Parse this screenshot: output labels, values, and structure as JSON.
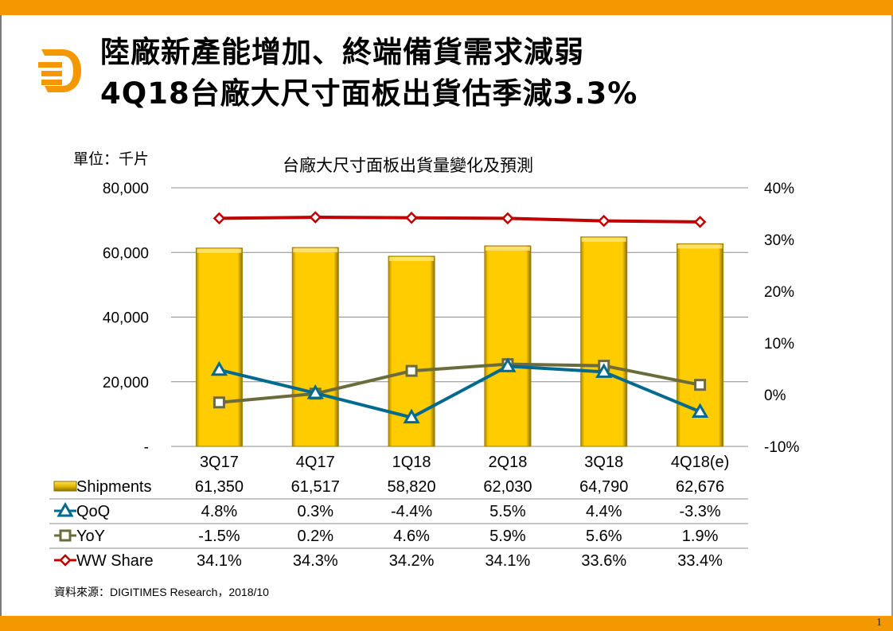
{
  "slide": {
    "title_line1": "陸廠新產能增加、終端備貨需求減弱",
    "title_line2": "4Q18台廠大尺寸面板出貨估季減3.3%",
    "unit_label": "單位：千片",
    "source": "資料來源：DIGITIMES Research，2018/10",
    "page_number": "1",
    "logo": "digitimes-d-logo",
    "colors": {
      "brand_orange": "#f39800",
      "bar_fill": "#ffcc00",
      "qoq": "#00698f",
      "yoy": "#6b6b3b",
      "ww_share": "#c00000"
    }
  },
  "chart_data": {
    "type": "bar",
    "title": "台廠大尺寸面板出貨量變化及預測",
    "xlabel": "",
    "ylabel": "單位：千片",
    "categories": [
      "3Q17",
      "4Q17",
      "1Q18",
      "2Q18",
      "3Q18",
      "4Q18(e)"
    ],
    "ylim": [
      0,
      80000
    ],
    "y2lim": [
      -10,
      40
    ],
    "y_ticks": [
      "-",
      "20,000",
      "40,000",
      "60,000",
      "80,000"
    ],
    "y2_ticks": [
      "-10%",
      "0%",
      "10%",
      "20%",
      "30%",
      "40%"
    ],
    "grid": true,
    "legend": "data-table-below",
    "series": [
      {
        "name": "Shipments",
        "type": "bar",
        "axis": "left",
        "marker": "bar",
        "values": [
          61350,
          61517,
          58820,
          62030,
          64790,
          62676
        ],
        "labels": [
          "61,350",
          "61,517",
          "58,820",
          "62,030",
          "64,790",
          "62,676"
        ]
      },
      {
        "name": "QoQ",
        "type": "line",
        "axis": "right",
        "marker": "triangle",
        "values": [
          4.8,
          0.3,
          -4.4,
          5.5,
          4.4,
          -3.3
        ],
        "labels": [
          "4.8%",
          "0.3%",
          "-4.4%",
          "5.5%",
          "4.4%",
          "-3.3%"
        ]
      },
      {
        "name": "YoY",
        "type": "line",
        "axis": "right",
        "marker": "square",
        "values": [
          -1.5,
          0.2,
          4.6,
          5.9,
          5.6,
          1.9
        ],
        "labels": [
          "-1.5%",
          "0.2%",
          "4.6%",
          "5.9%",
          "5.6%",
          "1.9%"
        ]
      },
      {
        "name": "WW Share",
        "type": "line",
        "axis": "right",
        "marker": "diamond",
        "values": [
          34.1,
          34.3,
          34.2,
          34.1,
          33.6,
          33.4
        ],
        "labels": [
          "34.1%",
          "34.3%",
          "34.2%",
          "34.1%",
          "33.6%",
          "33.4%"
        ]
      }
    ]
  }
}
